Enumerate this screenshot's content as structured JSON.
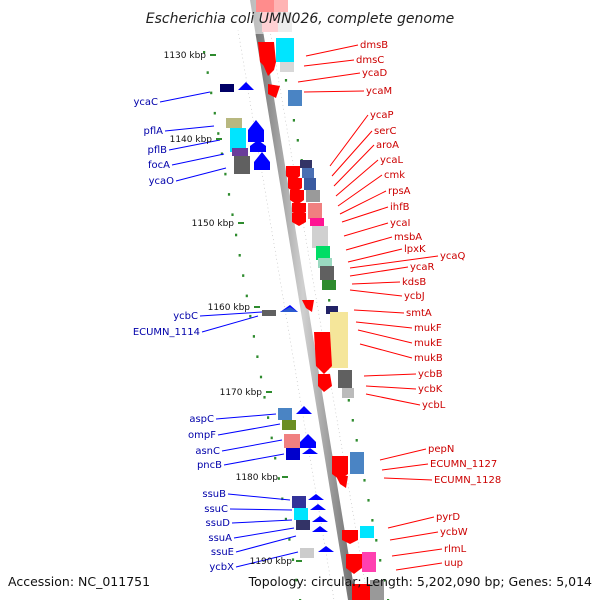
{
  "title": "Escherichia coli UMN026, complete genome",
  "footer": {
    "accession": "Accession: NC_011751",
    "summary": "Topology: circular; Length: 5,202,090 bp; Genes: 5,014"
  },
  "ticks": [
    "1130 kbp",
    "1140 kbp",
    "1150 kbp",
    "1160 kbp",
    "1170 kbp",
    "1180 kbp",
    "1190 kbp"
  ],
  "genes_forward": [
    "dmsB",
    "dmsC",
    "ycaD",
    "ycaM",
    "ycaP",
    "serC",
    "aroA",
    "ycaL",
    "cmk",
    "rpsA",
    "ihfB",
    "ycaI",
    "msbA",
    "lpxK",
    "ycaQ",
    "ycaR",
    "kdsB",
    "ycbJ",
    "smtA",
    "mukF",
    "mukE",
    "mukB",
    "ycbB",
    "ycbK",
    "ycbL",
    "pepN",
    "ECUMN_1127",
    "ECUMN_1128",
    "pyrD",
    "ycbW",
    "rlmL",
    "uup"
  ],
  "genes_reverse": [
    "ycaC",
    "pflA",
    "pflB",
    "focA",
    "ycaO",
    "ycbC",
    "ECUMN_1114",
    "aspC",
    "ompF",
    "asnC",
    "pncB",
    "ssuB",
    "ssuC",
    "ssuD",
    "ssuA",
    "ssuE",
    "ycbX"
  ],
  "colors": {
    "forward_strand": "#ff0000",
    "reverse_strand": "#0000ff",
    "label_forward": "#cc0000",
    "label_reverse": "#0000aa",
    "tick_marks": "#2e8b2e"
  }
}
